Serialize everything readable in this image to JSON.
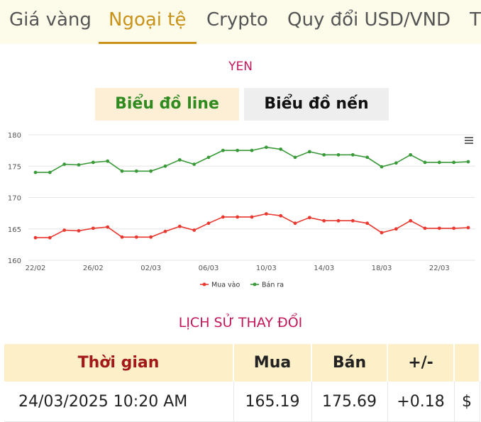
{
  "tabs": [
    {
      "label": "Giá vàng",
      "active": false
    },
    {
      "label": "Ngoại tệ",
      "active": true
    },
    {
      "label": "Crypto",
      "active": false
    },
    {
      "label": "Quy đổi USD/VND",
      "active": false
    },
    {
      "label": "T",
      "active": false
    }
  ],
  "chart_title": "YEN",
  "chart_toggle": {
    "line_label": "Biểu đồ line",
    "candle_label": "Biểu đồ nến"
  },
  "menu_icon": "hamburger-icon",
  "colors": {
    "buy": "#e8382f",
    "sell": "#3a9a3a",
    "accent": "#c9921a",
    "title": "#c2185b"
  },
  "chart_data": {
    "type": "line",
    "title": "YEN",
    "ylim": [
      160,
      180
    ],
    "yticks": [
      160,
      165,
      170,
      175,
      180
    ],
    "xtick_labels": [
      "22/02",
      "26/02",
      "02/03",
      "06/03",
      "10/03",
      "14/03",
      "18/03",
      "22/03"
    ],
    "x": [
      "22/02",
      "23/02",
      "24/02",
      "25/02",
      "26/02",
      "27/02",
      "28/02",
      "01/03",
      "02/03",
      "03/03",
      "04/03",
      "05/03",
      "06/03",
      "07/03",
      "08/03",
      "09/03",
      "10/03",
      "11/03",
      "12/03",
      "13/03",
      "14/03",
      "15/03",
      "16/03",
      "17/03",
      "18/03",
      "19/03",
      "20/03",
      "21/03",
      "22/03",
      "23/03",
      "24/03"
    ],
    "series": [
      {
        "name": "Mua vào",
        "color": "#e8382f",
        "values": [
          163.6,
          163.6,
          164.8,
          164.7,
          165.1,
          165.3,
          163.7,
          163.7,
          163.7,
          164.6,
          165.4,
          164.8,
          165.9,
          166.9,
          166.9,
          166.9,
          167.4,
          167.1,
          165.9,
          166.8,
          166.3,
          166.3,
          166.3,
          165.9,
          164.4,
          165.0,
          166.3,
          165.1,
          165.1,
          165.1,
          165.2
        ]
      },
      {
        "name": "Bán ra",
        "color": "#3a9a3a",
        "values": [
          174.0,
          174.0,
          175.3,
          175.2,
          175.6,
          175.8,
          174.2,
          174.2,
          174.2,
          175.0,
          176.0,
          175.3,
          176.4,
          177.5,
          177.5,
          177.5,
          178.0,
          177.7,
          176.4,
          177.3,
          176.8,
          176.8,
          176.8,
          176.4,
          174.9,
          175.5,
          176.8,
          175.6,
          175.6,
          175.6,
          175.7
        ]
      }
    ],
    "legend": "bottom-center",
    "grid": true
  },
  "history": {
    "title": "LỊCH SỬ THAY ĐỔI",
    "columns": [
      "Thời gian",
      "Mua",
      "Bán",
      "+/-",
      ""
    ],
    "rows": [
      {
        "time": "24/03/2025 10:20 AM",
        "buy": "165.19",
        "sell": "175.69",
        "change": "+0.18",
        "extra": "$"
      }
    ]
  }
}
